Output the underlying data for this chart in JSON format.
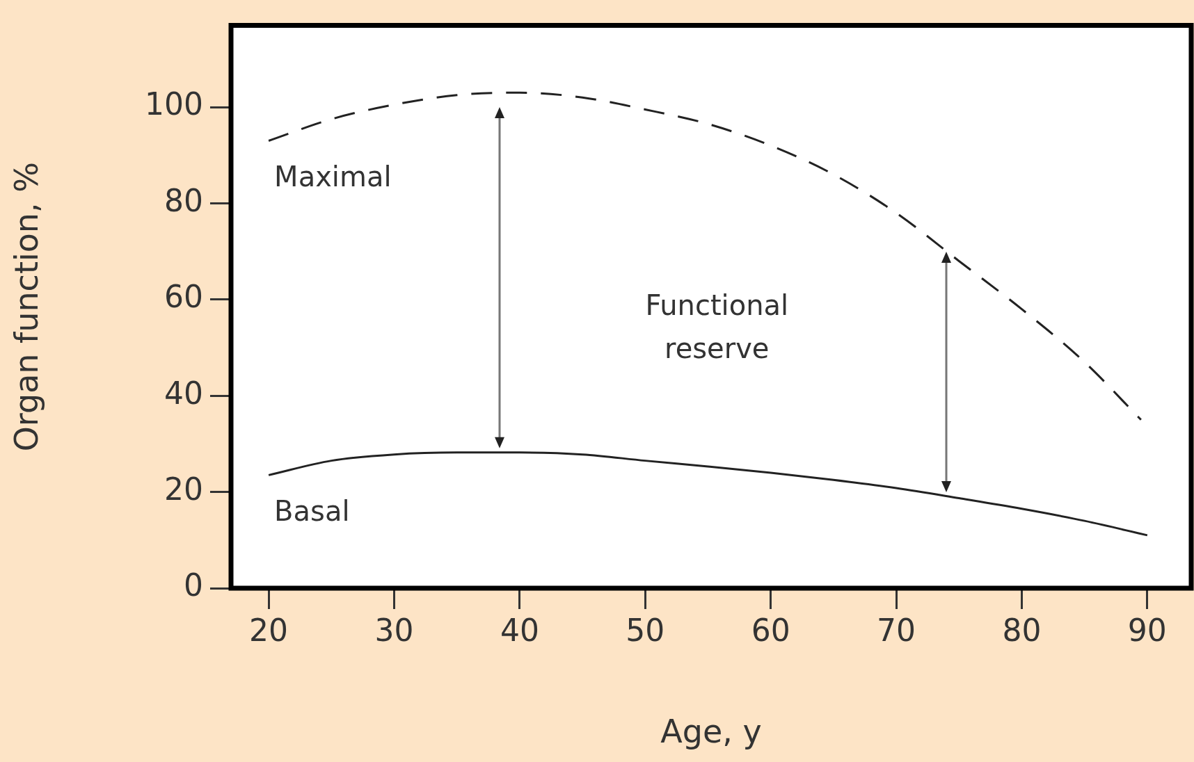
{
  "chart_data": {
    "type": "line",
    "xlabel": "Age, y",
    "ylabel": "Organ function, %",
    "x": [
      20,
      25,
      30,
      35,
      40,
      45,
      50,
      55,
      60,
      65,
      70,
      75,
      80,
      85,
      89.5
    ],
    "series": [
      {
        "name": "Maximal",
        "color": "#222222",
        "line_style": "dashed",
        "values": [
          93,
          97.5,
          100.5,
          102.5,
          103,
          102,
          99.5,
          96.5,
          92,
          86,
          78,
          68,
          58,
          47,
          35
        ]
      },
      {
        "name": "Basal",
        "color": "#222222",
        "line_style": "solid",
        "x": [
          20,
          25,
          30,
          35,
          40,
          45,
          50,
          55,
          60,
          65,
          70,
          75,
          80,
          85,
          90
        ],
        "values": [
          23.5,
          26.5,
          27.8,
          28.2,
          28.2,
          27.8,
          26.5,
          25.3,
          24,
          22.5,
          20.8,
          18.7,
          16.5,
          14,
          11
        ]
      }
    ],
    "xlim": [
      17,
      93.5
    ],
    "xticks": [
      20,
      30,
      40,
      50,
      60,
      70,
      80,
      90
    ],
    "ylim": [
      0,
      117
    ],
    "yticks": [
      0,
      20,
      40,
      60,
      80,
      100
    ],
    "annotations": [
      "Functional reserve"
    ],
    "marker": "none",
    "legend": false
  }
}
